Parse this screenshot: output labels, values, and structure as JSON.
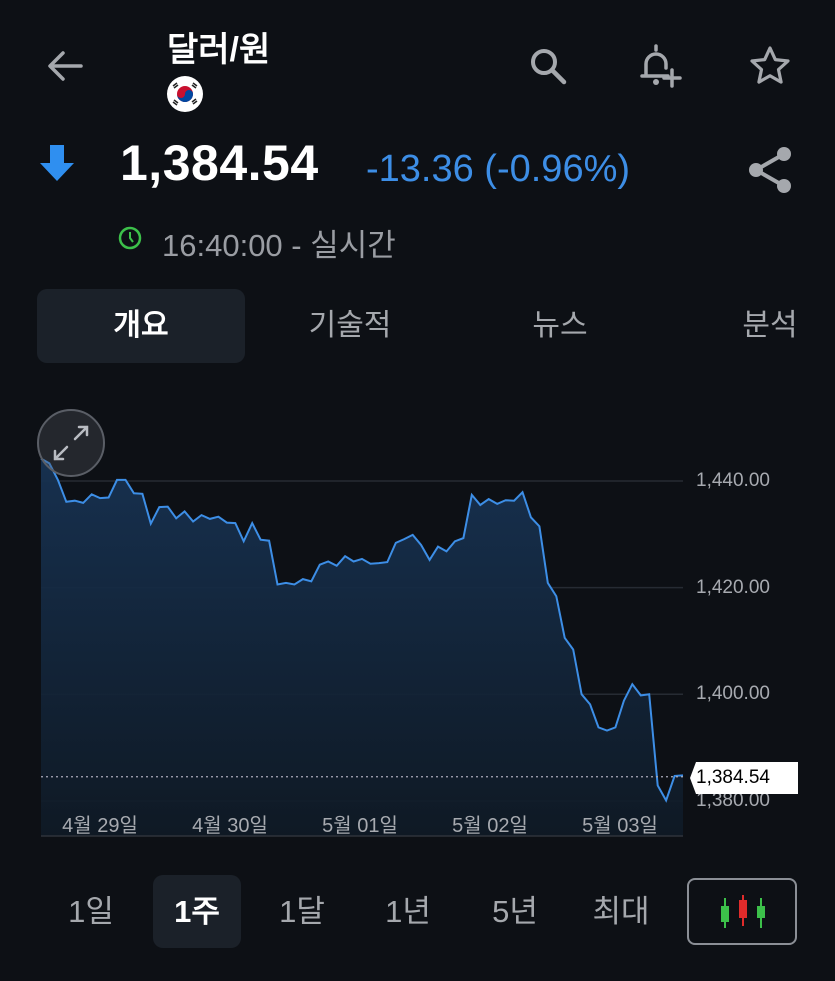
{
  "header": {
    "title": "달러/원",
    "flag": "south-korea-flag"
  },
  "quote": {
    "price": "1,384.54",
    "change": "-13.36 (-0.96%)",
    "direction": "down",
    "time": "16:40:00 - 실시간",
    "colors": {
      "down": "#3d8ee6",
      "clock": "#3cc04a"
    }
  },
  "tabs": [
    {
      "label": "개요",
      "selected": true
    },
    {
      "label": "기술적",
      "selected": false
    },
    {
      "label": "뉴스",
      "selected": false
    },
    {
      "label": "분석",
      "selected": false
    }
  ],
  "chart_data": {
    "type": "area",
    "x_tick_labels": [
      "4월 29일",
      "4월 30일",
      "5월 01일",
      "5월 02일",
      "5월 03일"
    ],
    "y_ticks": [
      "1,440.00",
      "1,420.00",
      "1,400.00",
      "1,380.00"
    ],
    "ylim": [
      1380,
      1444
    ],
    "grid": true,
    "current_value_label": "1,384.54",
    "current_value": 1384.54,
    "line_color": "#3d8ee6",
    "values": [
      1444.2,
      1443.3,
      1440.2,
      1436.1,
      1436.3,
      1435.9,
      1437.5,
      1436.8,
      1436.9,
      1440.2,
      1440.2,
      1437.7,
      1437.6,
      1432.0,
      1435.1,
      1435.2,
      1433.0,
      1434.3,
      1432.4,
      1433.6,
      1432.9,
      1433.3,
      1432.2,
      1432.1,
      1428.7,
      1432.1,
      1429.0,
      1428.8,
      1420.6,
      1420.9,
      1420.6,
      1421.6,
      1421.2,
      1424.3,
      1424.9,
      1424.1,
      1425.9,
      1424.9,
      1425.4,
      1424.5,
      1424.6,
      1424.8,
      1428.4,
      1429.1,
      1429.9,
      1428.0,
      1425.2,
      1427.7,
      1426.8,
      1428.7,
      1429.3,
      1437.4,
      1435.5,
      1436.6,
      1435.7,
      1436.4,
      1436.3,
      1437.9,
      1433.2,
      1431.5,
      1420.9,
      1418.4,
      1410.6,
      1408.4,
      1400.0,
      1398.1,
      1393.8,
      1393.2,
      1393.8,
      1398.8,
      1401.9,
      1399.8,
      1400.0,
      1382.9,
      1380.1,
      1384.7,
      1384.8
    ]
  },
  "ranges": [
    {
      "label": "1일",
      "selected": false
    },
    {
      "label": "1주",
      "selected": true
    },
    {
      "label": "1달",
      "selected": false
    },
    {
      "label": "1년",
      "selected": false
    },
    {
      "label": "5년",
      "selected": false
    },
    {
      "label": "최대",
      "selected": false
    }
  ]
}
